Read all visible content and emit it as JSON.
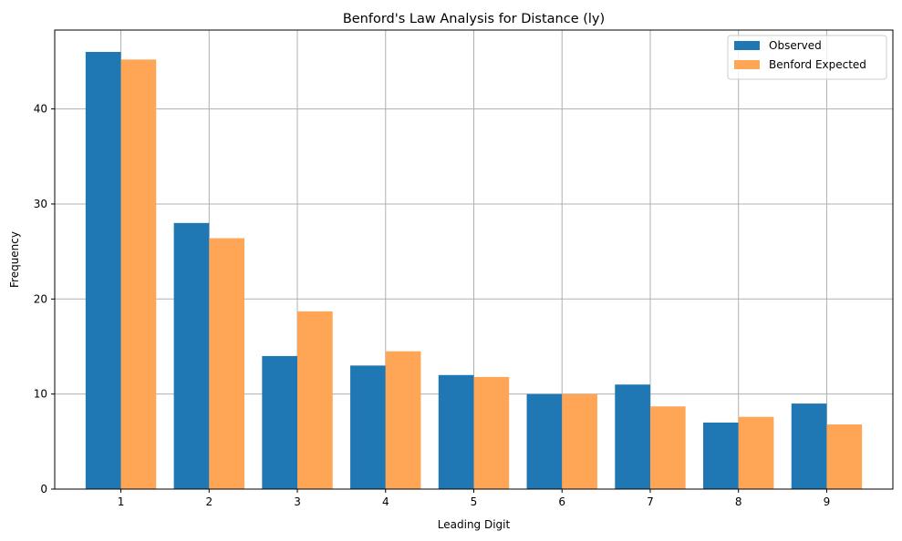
{
  "chart_data": {
    "type": "bar",
    "title": "Benford's Law Analysis for Distance (ly)",
    "xlabel": "Leading Digit",
    "ylabel": "Frequency",
    "categories": [
      "1",
      "2",
      "3",
      "4",
      "5",
      "6",
      "7",
      "8",
      "9"
    ],
    "series": [
      {
        "name": "Observed",
        "color": "#1f77b4",
        "values": [
          46,
          28,
          14,
          13,
          12,
          10,
          11,
          7,
          9
        ]
      },
      {
        "name": "Benford Expected",
        "color": "#ffa556",
        "values": [
          45.2,
          26.4,
          18.7,
          14.5,
          11.8,
          10.0,
          8.7,
          7.6,
          6.8
        ]
      }
    ],
    "ylim": [
      0,
      48.3
    ],
    "xlim": [
      0.25,
      9.75
    ],
    "yticks": [
      0,
      10,
      20,
      30,
      40
    ],
    "grid": true,
    "legend": "top-right"
  }
}
